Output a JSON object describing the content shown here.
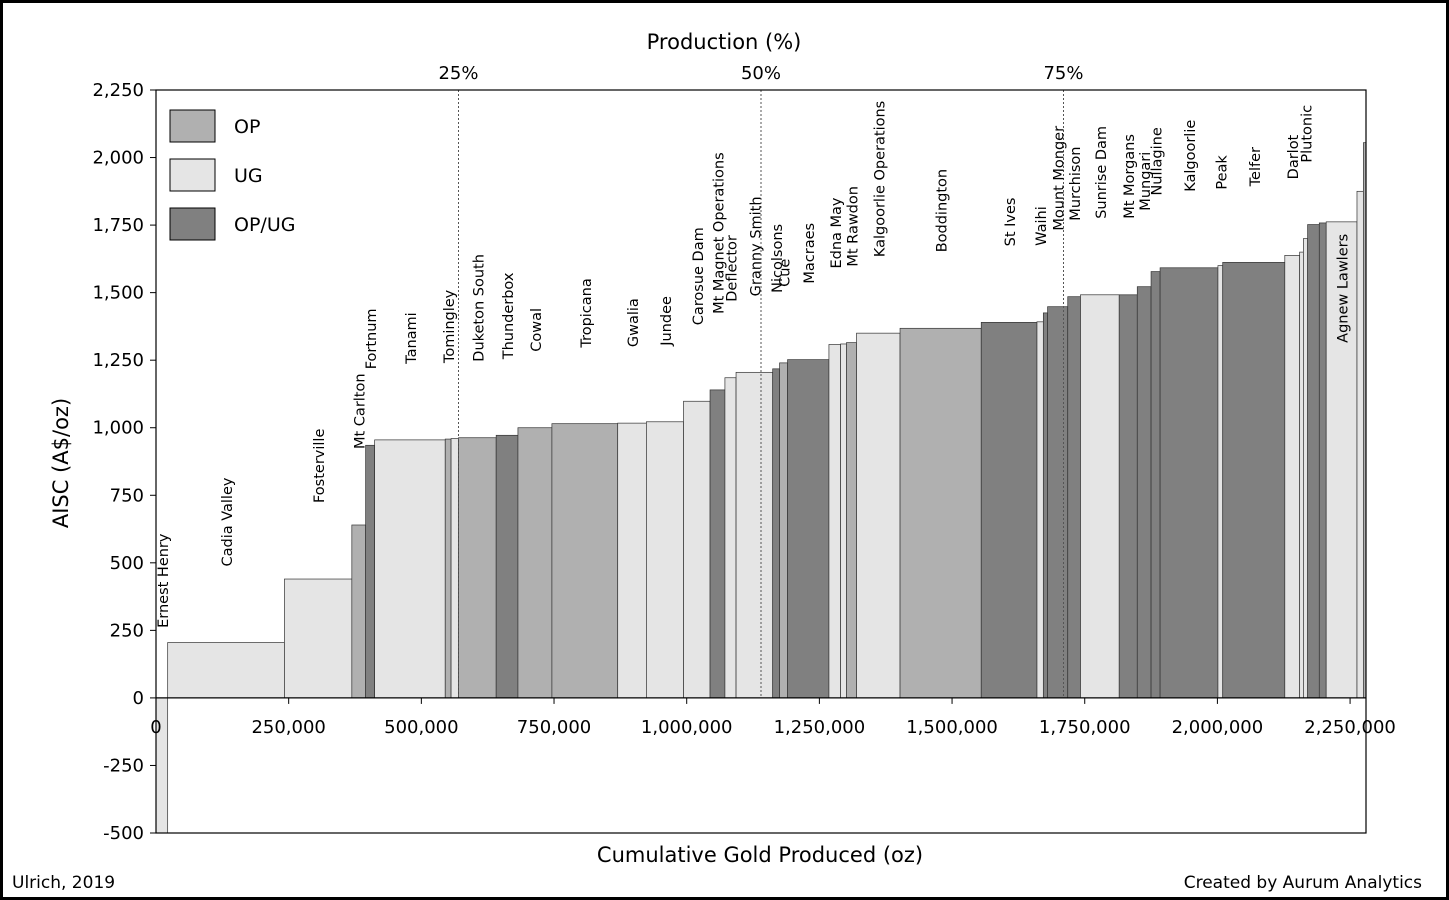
{
  "chart_data": {
    "type": "bar",
    "subtype": "cost-curve (variable-width bars)",
    "title": "Production (%)",
    "xlabel": "Cumulative Gold Produced (oz)",
    "ylabel": "AISC (A$/oz)",
    "xlim": [
      0,
      2280000
    ],
    "ylim": [
      -500,
      2250
    ],
    "x_ticks": [
      0,
      250000,
      500000,
      750000,
      1000000,
      1250000,
      1500000,
      1750000,
      2000000,
      2250000
    ],
    "x_tick_labels": [
      "0",
      "250,000",
      "500,000",
      "750,000",
      "1,000,000",
      "1,250,000",
      "1,500,000",
      "1,750,000",
      "2,000,000",
      "2,250,000"
    ],
    "y_ticks": [
      -500,
      -250,
      0,
      250,
      500,
      750,
      1000,
      1250,
      1500,
      1750,
      2000,
      2250
    ],
    "y_tick_labels": [
      "-500",
      "-250",
      "0",
      "250",
      "500",
      "750",
      "1,000",
      "1,250",
      "1,500",
      "1,750",
      "2,000",
      "2,250"
    ],
    "percentile_lines": [
      {
        "label": "25%",
        "x": 570000
      },
      {
        "label": "50%",
        "x": 1140000
      },
      {
        "label": "75%",
        "x": 1710000
      }
    ],
    "legend": {
      "placement": "top-left",
      "entries": [
        {
          "name": "OP",
          "color": "#b0b0b0"
        },
        {
          "name": "UG",
          "color": "#e5e5e5"
        },
        {
          "name": "OP/UG",
          "color": "#808080"
        }
      ]
    },
    "grid": false,
    "bars": [
      {
        "name": "Ernest Henry",
        "type": "UG",
        "x0": 0,
        "x1": 22000,
        "aisc": -500
      },
      {
        "name": "Cadia Valley",
        "type": "UG",
        "x0": 22000,
        "x1": 242000,
        "aisc": 205
      },
      {
        "name": "Fosterville",
        "type": "UG",
        "x0": 242000,
        "x1": 369000,
        "aisc": 440
      },
      {
        "name": "Mt Carlton",
        "type": "OP",
        "x0": 369000,
        "x1": 395000,
        "aisc": 640
      },
      {
        "name": "Fortnum",
        "type": "OP/UG",
        "x0": 395000,
        "x1": 412000,
        "aisc": 935
      },
      {
        "name": "Tanami",
        "type": "UG",
        "x0": 412000,
        "x1": 545000,
        "aisc": 955
      },
      {
        "name": "Tomingley",
        "type": "OP",
        "x0": 545000,
        "x1": 556000,
        "aisc": 958
      },
      {
        "name": "",
        "type": "UG",
        "x0": 556000,
        "x1": 570000,
        "aisc": 960
      },
      {
        "name": "Duketon South",
        "type": "OP",
        "x0": 570000,
        "x1": 641000,
        "aisc": 963
      },
      {
        "name": "Thunderbox",
        "type": "OP/UG",
        "x0": 641000,
        "x1": 682000,
        "aisc": 972
      },
      {
        "name": "Cowal",
        "type": "OP",
        "x0": 682000,
        "x1": 746000,
        "aisc": 1000
      },
      {
        "name": "Tropicana",
        "type": "OP",
        "x0": 746000,
        "x1": 870000,
        "aisc": 1015
      },
      {
        "name": "Gwalia",
        "type": "UG",
        "x0": 870000,
        "x1": 924000,
        "aisc": 1017
      },
      {
        "name": "Jundee",
        "type": "UG",
        "x0": 924000,
        "x1": 994000,
        "aisc": 1022
      },
      {
        "name": "Carosue Dam",
        "type": "UG",
        "x0": 994000,
        "x1": 1044000,
        "aisc": 1098
      },
      {
        "name": "Mt Magnet Operations",
        "type": "OP/UG",
        "x0": 1044000,
        "x1": 1072000,
        "aisc": 1140
      },
      {
        "name": "Deflector",
        "type": "UG",
        "x0": 1072000,
        "x1": 1093000,
        "aisc": 1185
      },
      {
        "name": "Granny Smith",
        "type": "UG",
        "x0": 1093000,
        "x1": 1162000,
        "aisc": 1205
      },
      {
        "name": "Nicolsons",
        "type": "OP/UG",
        "x0": 1162000,
        "x1": 1175000,
        "aisc": 1218
      },
      {
        "name": "Cue",
        "type": "OP",
        "x0": 1175000,
        "x1": 1190000,
        "aisc": 1240
      },
      {
        "name": "Macraes",
        "type": "OP/UG",
        "x0": 1190000,
        "x1": 1268000,
        "aisc": 1252
      },
      {
        "name": "Edna May",
        "type": "UG",
        "x0": 1268000,
        "x1": 1290000,
        "aisc": 1308
      },
      {
        "name": "",
        "type": "UG",
        "x0": 1290000,
        "x1": 1301000,
        "aisc": 1310
      },
      {
        "name": "Mt Rawdon",
        "type": "OP",
        "x0": 1301000,
        "x1": 1320000,
        "aisc": 1315
      },
      {
        "name": "Kalgoorlie Operations",
        "type": "UG",
        "x0": 1320000,
        "x1": 1402000,
        "aisc": 1350
      },
      {
        "name": "Boddington",
        "type": "OP",
        "x0": 1402000,
        "x1": 1555000,
        "aisc": 1368
      },
      {
        "name": "St Ives",
        "type": "OP/UG",
        "x0": 1555000,
        "x1": 1660000,
        "aisc": 1390
      },
      {
        "name": "Waihi",
        "type": "UG",
        "x0": 1660000,
        "x1": 1672000,
        "aisc": 1392
      },
      {
        "name": "",
        "type": "OP/UG",
        "x0": 1672000,
        "x1": 1680000,
        "aisc": 1425
      },
      {
        "name": "Mount Monger",
        "type": "OP/UG",
        "x0": 1680000,
        "x1": 1718000,
        "aisc": 1448
      },
      {
        "name": "Murchison",
        "type": "OP/UG",
        "x0": 1718000,
        "x1": 1742000,
        "aisc": 1485
      },
      {
        "name": "Sunrise Dam",
        "type": "UG",
        "x0": 1742000,
        "x1": 1815000,
        "aisc": 1492
      },
      {
        "name": "Mt Morgans",
        "type": "OP/UG",
        "x0": 1815000,
        "x1": 1849000,
        "aisc": 1492
      },
      {
        "name": "Mungari",
        "type": "OP/UG",
        "x0": 1849000,
        "x1": 1875000,
        "aisc": 1522
      },
      {
        "name": "Nullagine",
        "type": "OP/UG",
        "x0": 1875000,
        "x1": 1892000,
        "aisc": 1578
      },
      {
        "name": "Kalgoorlie",
        "type": "OP/UG",
        "x0": 1892000,
        "x1": 2001000,
        "aisc": 1592
      },
      {
        "name": "Peak",
        "type": "UG",
        "x0": 2001000,
        "x1": 2010000,
        "aisc": 1600
      },
      {
        "name": "Telfer",
        "type": "OP/UG",
        "x0": 2010000,
        "x1": 2127000,
        "aisc": 1612
      },
      {
        "name": "Darlot",
        "type": "UG",
        "x0": 2127000,
        "x1": 2155000,
        "aisc": 1638
      },
      {
        "name": "",
        "type": "UG",
        "x0": 2155000,
        "x1": 2162000,
        "aisc": 1650
      },
      {
        "name": "Plutonic",
        "type": "UG",
        "x0": 2162000,
        "x1": 2170000,
        "aisc": 1700
      },
      {
        "name": "",
        "type": "OP/UG",
        "x0": 2170000,
        "x1": 2192000,
        "aisc": 1752
      },
      {
        "name": "",
        "type": "OP/UG",
        "x0": 2192000,
        "x1": 2205000,
        "aisc": 1758
      },
      {
        "name": "Agnew Lawlers",
        "type": "UG",
        "x0": 2205000,
        "x1": 2263000,
        "aisc": 1762
      },
      {
        "name": "",
        "type": "UG",
        "x0": 2263000,
        "x1": 2275000,
        "aisc": 1875
      },
      {
        "name": "",
        "type": "OP",
        "x0": 2275000,
        "x1": 2280000,
        "aisc": 2055
      }
    ]
  },
  "footer": {
    "left": "Ulrich, 2019",
    "right": "Created by Aurum Analytics"
  }
}
